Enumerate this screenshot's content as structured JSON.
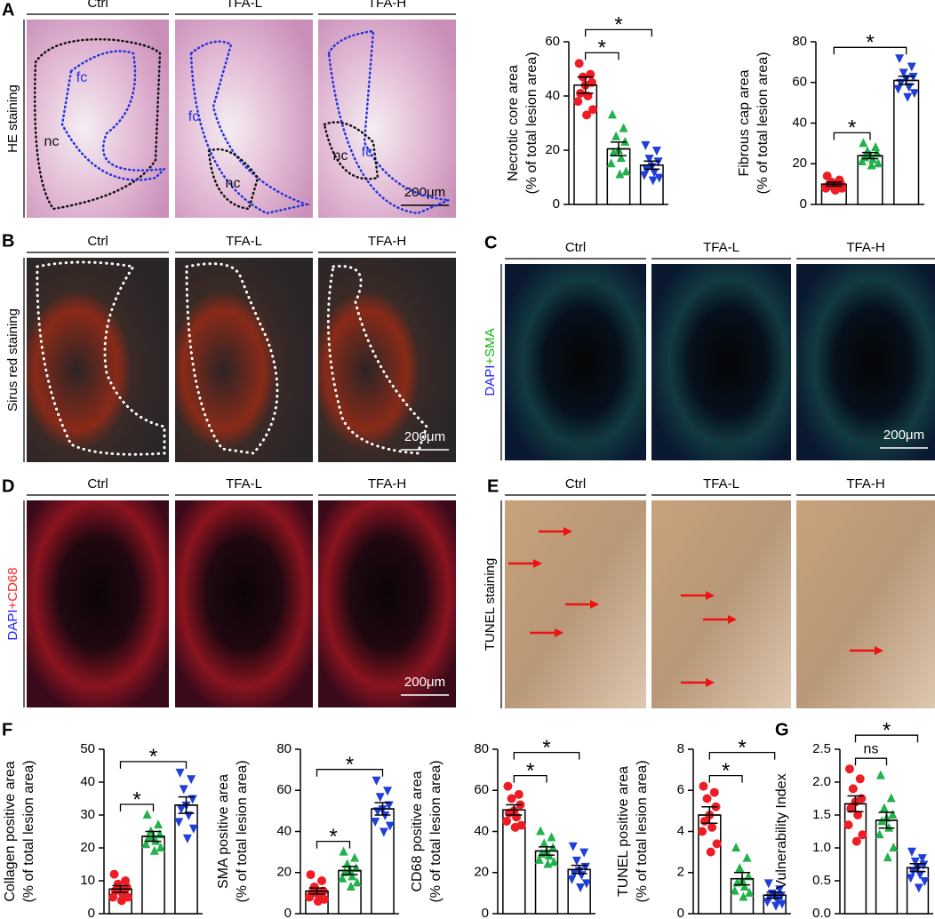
{
  "panels": {
    "A": {
      "label": "A",
      "columns": [
        "Ctrl",
        "TFA-L",
        "TFA-H"
      ],
      "side_label": [
        "HE staining"
      ],
      "scale_bar": "200μm",
      "annotations": [
        [
          "fc",
          "nc"
        ],
        [
          "fc",
          "nc"
        ],
        [
          "nc",
          "fc"
        ]
      ]
    },
    "B": {
      "label": "B",
      "columns": [
        "Ctrl",
        "TFA-L",
        "TFA-H"
      ],
      "side_label": [
        "Sirus red staining"
      ],
      "scale_bar": "200μm"
    },
    "C": {
      "label": "C",
      "columns": [
        "Ctrl",
        "TFA-L",
        "TFA-H"
      ],
      "side_label": [
        "DAPI",
        "+SMA"
      ],
      "scale_bar": "200μm"
    },
    "D": {
      "label": "D",
      "columns": [
        "Ctrl",
        "TFA-L",
        "TFA-H"
      ],
      "side_label": [
        "DAPI",
        "+CD68"
      ],
      "scale_bar": "200μm"
    },
    "E": {
      "label": "E",
      "columns": [
        "Ctrl",
        "TFA-L",
        "TFA-H"
      ],
      "side_label": [
        "TUNEL staining"
      ]
    },
    "F": {
      "label": "F"
    },
    "G": {
      "label": "G"
    }
  },
  "chart_data": [
    {
      "type": "bar",
      "ylabel": [
        "Necrotic core area",
        "(% of total lesion area)"
      ],
      "categories": [
        null,
        null,
        null
      ],
      "values": [
        44,
        20.5,
        14.5
      ],
      "errors": [
        3,
        2.5,
        1.5
      ],
      "points": [
        [
          52,
          48,
          47,
          45,
          44,
          41,
          40,
          38,
          35,
          33
        ],
        [
          33,
          28,
          25,
          23,
          20,
          19,
          17,
          15,
          12,
          11
        ],
        [
          22,
          20,
          17,
          16,
          14,
          13,
          12,
          11,
          10,
          9
        ]
      ],
      "colors": [
        "#ee1c25",
        "#22b14c",
        "#1f3fd8"
      ],
      "markers": [
        "circle",
        "triangle",
        "triangle-down"
      ],
      "ylim": [
        0,
        60
      ],
      "yticks": [
        0,
        20,
        40,
        60
      ],
      "brackets": [
        {
          "from": 0,
          "to": 1,
          "label": "*"
        },
        {
          "from": 0,
          "to": 2,
          "label": "*"
        }
      ]
    },
    {
      "type": "bar",
      "ylabel": [
        "Fibrous cap area",
        "(% of total lesion area)"
      ],
      "categories": [
        null,
        null,
        null
      ],
      "values": [
        10,
        24,
        61
      ],
      "errors": [
        1,
        1.5,
        2
      ],
      "points": [
        [
          14,
          12,
          11,
          10,
          10,
          9,
          9,
          8,
          8,
          7
        ],
        [
          30,
          28,
          26,
          25,
          24,
          23,
          22,
          21,
          20,
          19
        ],
        [
          72,
          68,
          65,
          63,
          62,
          60,
          58,
          57,
          55,
          53
        ]
      ],
      "colors": [
        "#ee1c25",
        "#22b14c",
        "#1f3fd8"
      ],
      "markers": [
        "circle",
        "triangle",
        "triangle-down"
      ],
      "ylim": [
        0,
        80
      ],
      "yticks": [
        0,
        20,
        40,
        60,
        80
      ],
      "brackets": [
        {
          "from": 0,
          "to": 1,
          "label": "*"
        },
        {
          "from": 0,
          "to": 2,
          "label": "*"
        }
      ]
    },
    {
      "type": "bar",
      "ylabel": [
        "Collagen positive area",
        "(% of total lesion area)"
      ],
      "categories": [
        null,
        null,
        null
      ],
      "values": [
        7.5,
        23.5,
        33
      ],
      "errors": [
        1,
        1.5,
        2.5
      ],
      "points": [
        [
          12,
          10,
          9,
          8,
          7,
          7,
          6,
          5,
          5,
          4
        ],
        [
          30,
          27,
          25,
          24,
          23,
          23,
          22,
          21,
          20,
          19
        ],
        [
          43,
          41,
          38,
          35,
          33,
          32,
          30,
          28,
          26,
          23
        ]
      ],
      "colors": [
        "#ee1c25",
        "#22b14c",
        "#1f3fd8"
      ],
      "markers": [
        "circle",
        "triangle",
        "triangle-down"
      ],
      "ylim": [
        0,
        50
      ],
      "yticks": [
        0,
        10,
        20,
        30,
        40,
        50
      ],
      "brackets": [
        {
          "from": 0,
          "to": 1,
          "label": "*"
        },
        {
          "from": 0,
          "to": 2,
          "label": "*"
        }
      ]
    },
    {
      "type": "bar",
      "ylabel": [
        "SMA positive area",
        "(% of total lesion area)"
      ],
      "categories": [
        null,
        null,
        null
      ],
      "values": [
        11,
        21,
        51
      ],
      "errors": [
        1.5,
        2,
        3
      ],
      "points": [
        [
          19,
          16,
          13,
          11,
          10,
          10,
          9,
          8,
          7,
          6
        ],
        [
          30,
          27,
          24,
          22,
          21,
          20,
          18,
          17,
          15,
          13
        ],
        [
          65,
          60,
          57,
          53,
          51,
          50,
          48,
          45,
          43,
          40
        ]
      ],
      "colors": [
        "#ee1c25",
        "#22b14c",
        "#1f3fd8"
      ],
      "markers": [
        "circle",
        "triangle",
        "triangle-down"
      ],
      "ylim": [
        0,
        80
      ],
      "yticks": [
        0,
        20,
        40,
        60,
        80
      ],
      "brackets": [
        {
          "from": 0,
          "to": 1,
          "label": "*"
        },
        {
          "from": 0,
          "to": 2,
          "label": "*"
        }
      ]
    },
    {
      "type": "bar",
      "ylabel": [
        "CD68 positive area",
        "(% of total lesion area)"
      ],
      "categories": [
        null,
        null,
        null
      ],
      "values": [
        50.5,
        30.5,
        21.5
      ],
      "errors": [
        2.5,
        2,
        2
      ],
      "points": [
        [
          62,
          58,
          56,
          53,
          50,
          49,
          47,
          45,
          43,
          42
        ],
        [
          40,
          37,
          34,
          32,
          30,
          29,
          28,
          26,
          25,
          24
        ],
        [
          33,
          30,
          26,
          23,
          21,
          20,
          19,
          17,
          15,
          13
        ]
      ],
      "colors": [
        "#ee1c25",
        "#22b14c",
        "#1f3fd8"
      ],
      "markers": [
        "circle",
        "triangle",
        "triangle-down"
      ],
      "ylim": [
        0,
        80
      ],
      "yticks": [
        0,
        20,
        40,
        60,
        80
      ],
      "brackets": [
        {
          "from": 0,
          "to": 1,
          "label": "*"
        },
        {
          "from": 0,
          "to": 2,
          "label": "*"
        }
      ]
    },
    {
      "type": "bar",
      "ylabel": [
        "TUNEL positive area",
        "(% of total lesion area)"
      ],
      "categories": [
        null,
        null,
        null
      ],
      "values": [
        4.8,
        1.7,
        0.9
      ],
      "errors": [
        0.4,
        0.3,
        0.15
      ],
      "points": [
        [
          6.2,
          5.9,
          5.6,
          5.2,
          4.8,
          4.5,
          4.2,
          4.0,
          3.4,
          3.0
        ],
        [
          3.2,
          2.7,
          2.2,
          1.8,
          1.6,
          1.5,
          1.3,
          1.1,
          1.0,
          0.8
        ],
        [
          1.5,
          1.2,
          1.0,
          0.9,
          0.9,
          0.8,
          0.7,
          0.6,
          0.5,
          0.4
        ]
      ],
      "colors": [
        "#ee1c25",
        "#22b14c",
        "#1f3fd8"
      ],
      "markers": [
        "circle",
        "triangle",
        "triangle-down"
      ],
      "ylim": [
        0,
        8
      ],
      "yticks": [
        0,
        2,
        4,
        6,
        8
      ],
      "brackets": [
        {
          "from": 0,
          "to": 1,
          "label": "*"
        },
        {
          "from": 0,
          "to": 2,
          "label": "*"
        }
      ]
    },
    {
      "type": "bar",
      "ylabel": [
        "Vulnerability Index"
      ],
      "categories": [
        null,
        null,
        null
      ],
      "values": [
        1.67,
        1.42,
        0.7
      ],
      "errors": [
        0.12,
        0.12,
        0.06
      ],
      "points": [
        [
          2.2,
          2.05,
          1.9,
          1.75,
          1.7,
          1.6,
          1.5,
          1.35,
          1.2,
          1.1
        ],
        [
          2.1,
          1.75,
          1.6,
          1.5,
          1.45,
          1.4,
          1.3,
          1.2,
          1.0,
          0.85
        ],
        [
          0.95,
          0.85,
          0.8,
          0.75,
          0.7,
          0.65,
          0.6,
          0.55,
          0.5,
          0.4
        ]
      ],
      "colors": [
        "#ee1c25",
        "#22b14c",
        "#1f3fd8"
      ],
      "markers": [
        "circle",
        "triangle",
        "triangle-down"
      ],
      "ylim": [
        0,
        2.5
      ],
      "yticks": [
        {
          "value": 0,
          "label": "0.0"
        },
        0.5,
        {
          "value": 1,
          "label": "1.0"
        },
        1.5,
        {
          "value": 2,
          "label": "2.0"
        },
        2.5
      ],
      "brackets": [
        {
          "from": 0,
          "to": 1,
          "label": "ns"
        },
        {
          "from": 0,
          "to": 2,
          "label": "*"
        }
      ]
    }
  ]
}
